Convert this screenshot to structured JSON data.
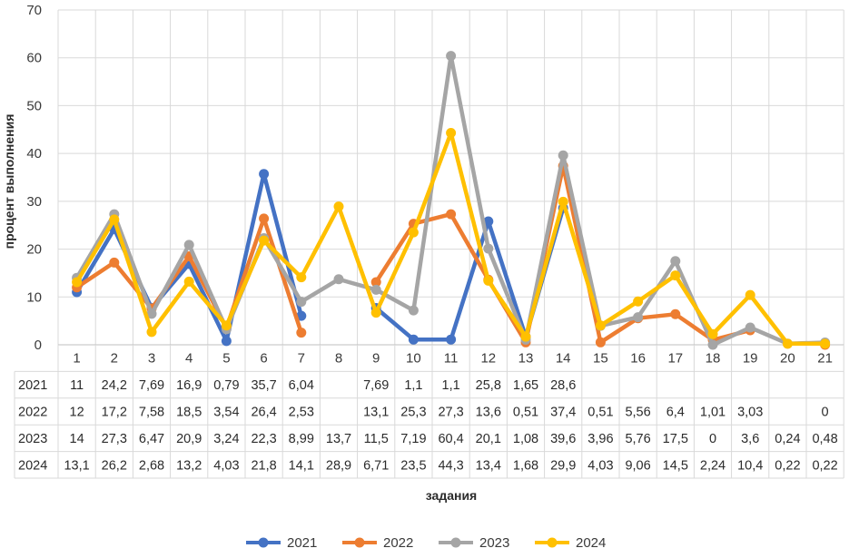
{
  "chart_data": {
    "type": "line",
    "xlabel": "задания",
    "ylabel": "процент выполнения",
    "ylim": [
      0,
      70
    ],
    "yticks": [
      "0",
      "10",
      "20",
      "30",
      "40",
      "50",
      "60",
      "70"
    ],
    "grid": true,
    "legend_position": "bottom",
    "categories": [
      "1",
      "2",
      "3",
      "4",
      "5",
      "6",
      "7",
      "8",
      "9",
      "10",
      "11",
      "12",
      "13",
      "14",
      "15",
      "16",
      "17",
      "18",
      "19",
      "20",
      "21"
    ],
    "series": [
      {
        "name": "2021",
        "color": "#4472C4",
        "values": [
          11,
          24.2,
          7.69,
          16.9,
          0.79,
          35.7,
          6.04,
          null,
          7.69,
          1.1,
          1.1,
          25.8,
          1.65,
          28.6,
          null,
          null,
          null,
          null,
          null,
          null,
          null
        ],
        "labels": [
          "11",
          "24,2",
          "7,69",
          "16,9",
          "0,79",
          "35,7",
          "6,04",
          "",
          "7,69",
          "1,1",
          "1,1",
          "25,8",
          "1,65",
          "28,6",
          "",
          "",
          "",
          "",
          "",
          "",
          ""
        ]
      },
      {
        "name": "2022",
        "color": "#ED7D31",
        "values": [
          12,
          17.2,
          7.58,
          18.5,
          3.54,
          26.4,
          2.53,
          null,
          13.1,
          25.3,
          27.3,
          13.6,
          0.51,
          37.4,
          0.51,
          5.56,
          6.4,
          1.01,
          3.03,
          null,
          0
        ],
        "labels": [
          "12",
          "17,2",
          "7,58",
          "18,5",
          "3,54",
          "26,4",
          "2,53",
          "",
          "13,1",
          "25,3",
          "27,3",
          "13,6",
          "0,51",
          "37,4",
          "0,51",
          "5,56",
          "6,4",
          "1,01",
          "3,03",
          "",
          "0"
        ]
      },
      {
        "name": "2023",
        "color": "#A5A5A5",
        "values": [
          14,
          27.3,
          6.47,
          20.9,
          3.24,
          22.3,
          8.99,
          13.7,
          11.5,
          7.19,
          60.4,
          20.1,
          1.08,
          39.6,
          3.96,
          5.76,
          17.5,
          0,
          3.6,
          0.24,
          0.48
        ],
        "labels": [
          "14",
          "27,3",
          "6,47",
          "20,9",
          "3,24",
          "22,3",
          "8,99",
          "13,7",
          "11,5",
          "7,19",
          "60,4",
          "20,1",
          "1,08",
          "39,6",
          "3,96",
          "5,76",
          "17,5",
          "0",
          "3,6",
          "0,24",
          "0,48"
        ]
      },
      {
        "name": "2024",
        "color": "#FFC000",
        "values": [
          13.1,
          26.2,
          2.68,
          13.2,
          4.03,
          21.8,
          14.1,
          28.9,
          6.71,
          23.5,
          44.3,
          13.4,
          1.68,
          29.9,
          4.03,
          9.06,
          14.5,
          2.24,
          10.4,
          0.22,
          0.22
        ],
        "labels": [
          "13,1",
          "26,2",
          "2,68",
          "13,2",
          "4,03",
          "21,8",
          "14,1",
          "28,9",
          "6,71",
          "23,5",
          "44,3",
          "13,4",
          "1,68",
          "29,9",
          "4,03",
          "9,06",
          "14,5",
          "2,24",
          "10,4",
          "0,22",
          "0,22"
        ]
      }
    ]
  }
}
